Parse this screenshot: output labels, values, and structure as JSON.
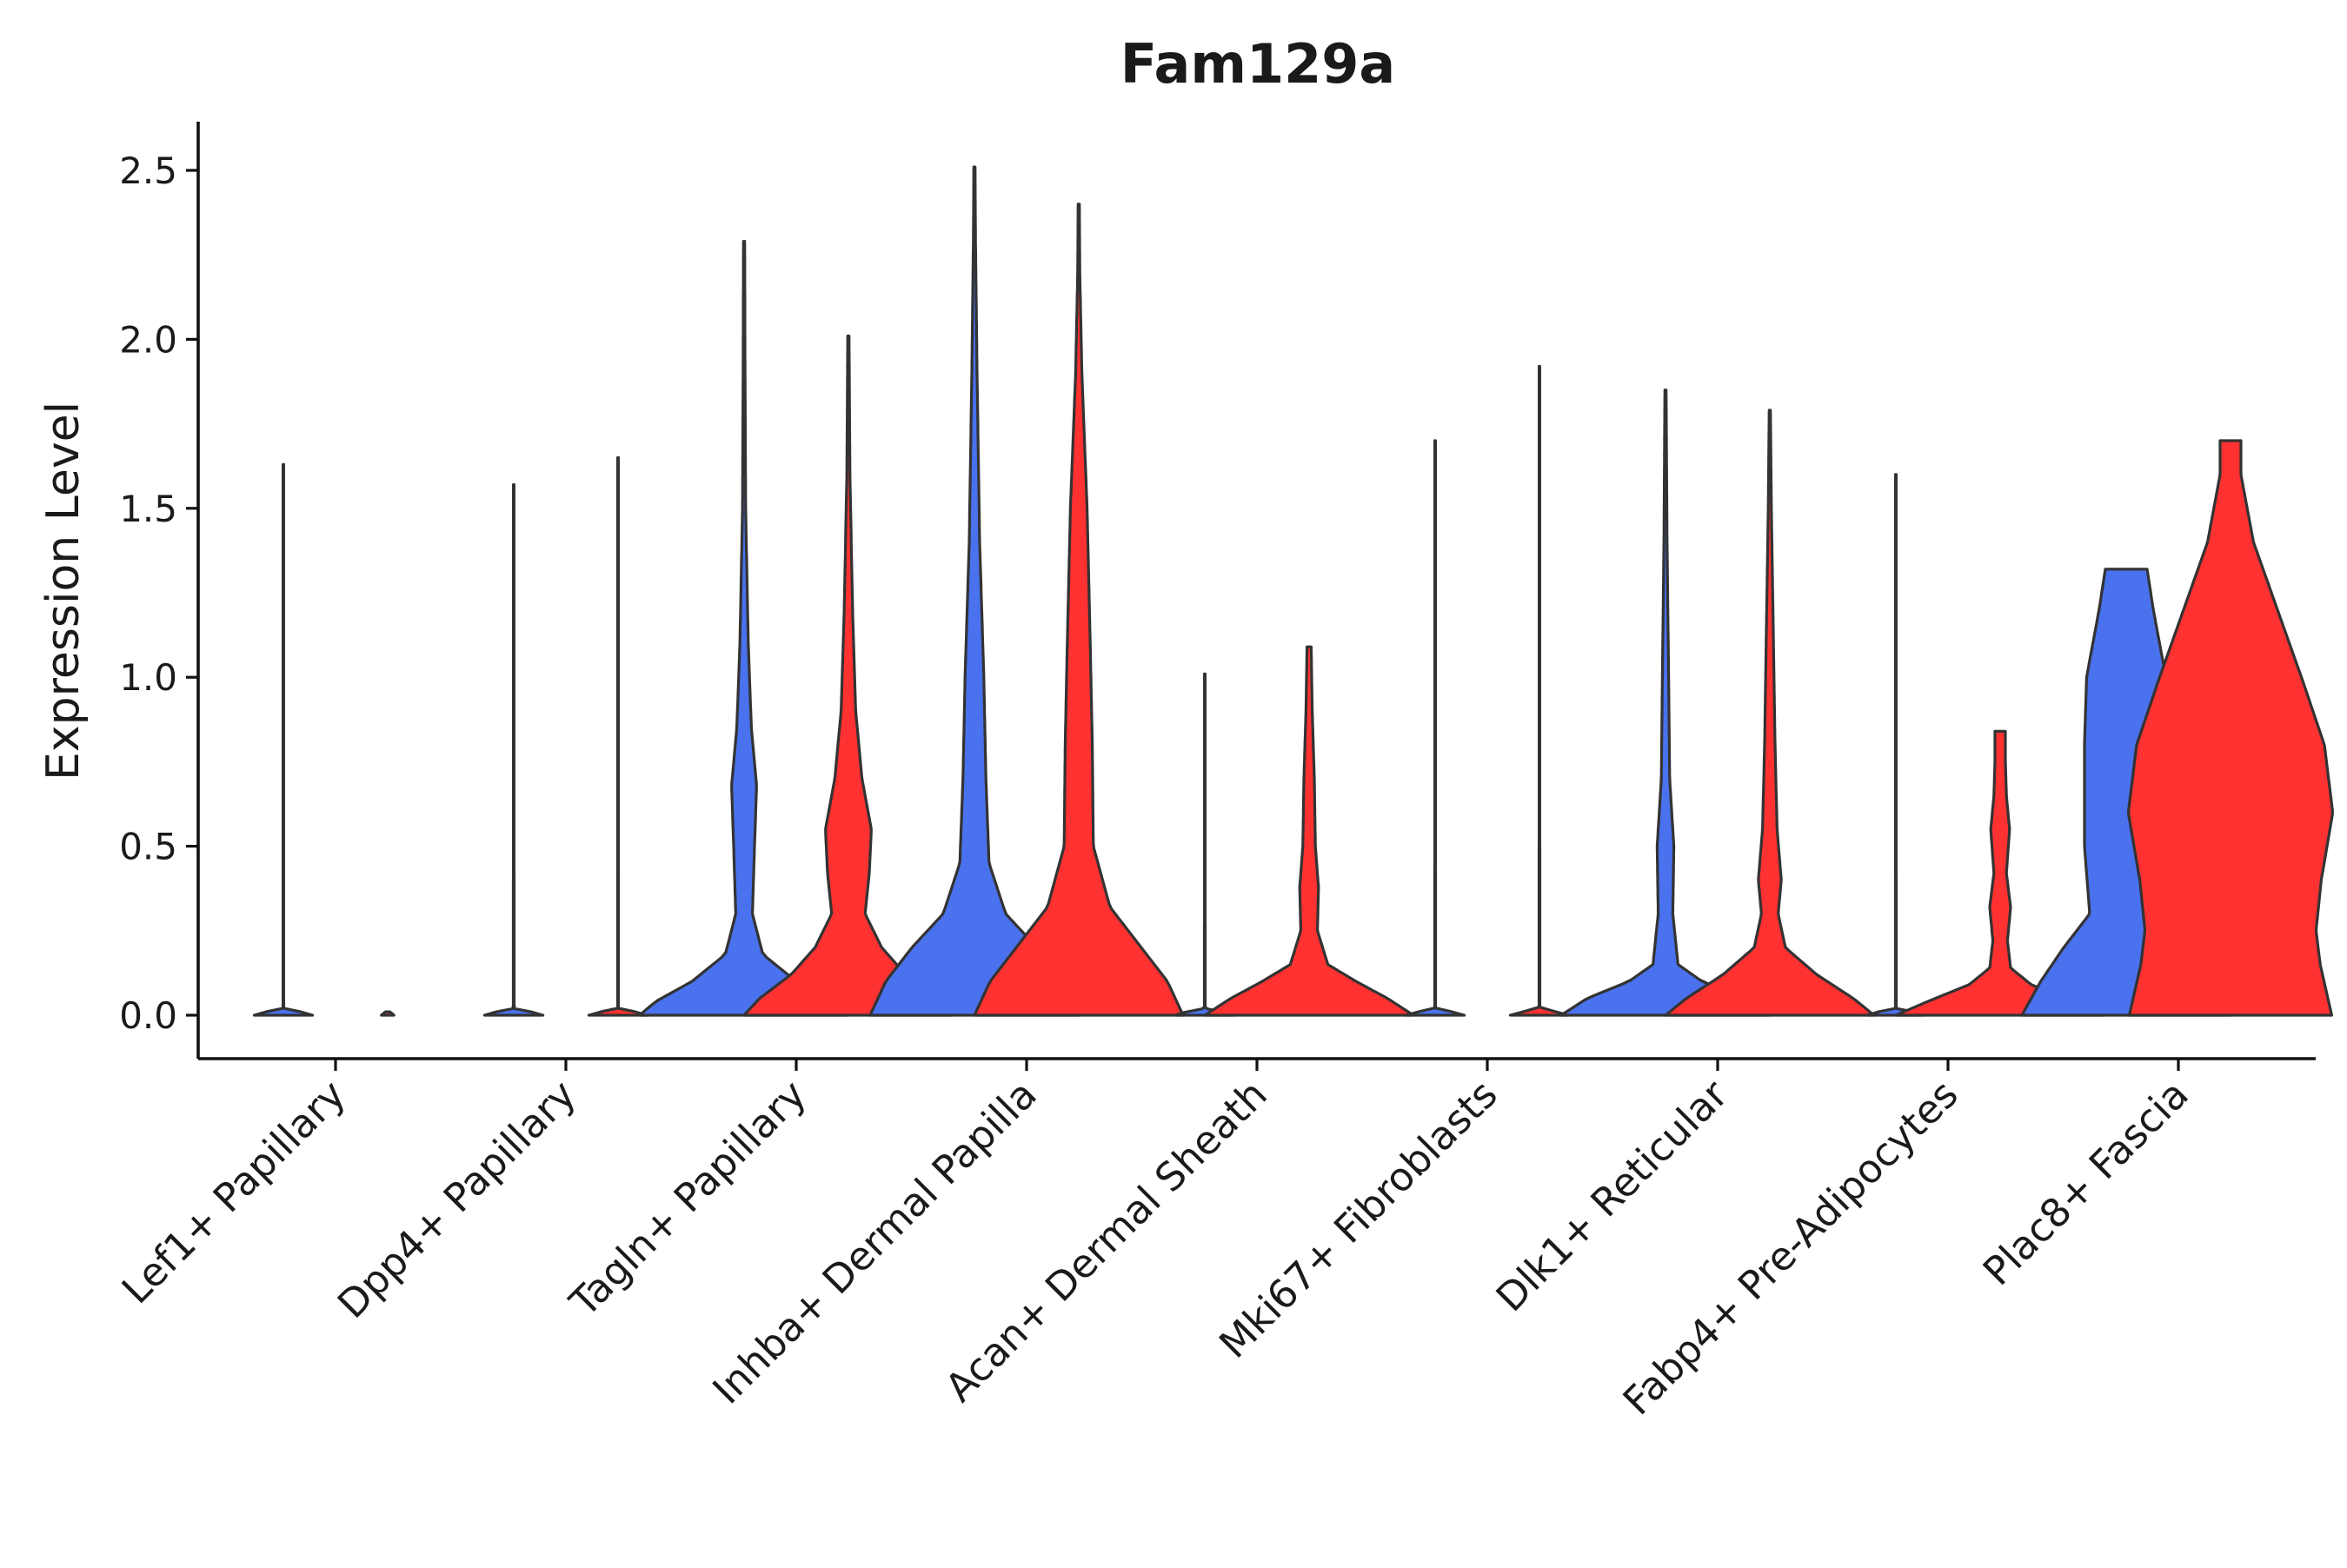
{
  "chart_data": {
    "type": "violin",
    "title": "Fam129a",
    "xlabel": "",
    "ylabel": "Expression Level",
    "ylim": [
      -0.125,
      2.65
    ],
    "yticks": [
      0.0,
      0.5,
      1.0,
      1.5,
      2.0,
      2.5
    ],
    "ytick_labels": [
      "0.0",
      "0.5",
      "1.0",
      "1.5",
      "2.0",
      "2.5"
    ],
    "grid": false,
    "legend": "none",
    "series": [
      {
        "name": "group-1",
        "color": "#4a72ee"
      },
      {
        "name": "group-2",
        "color": "#ff3131"
      }
    ],
    "categories": [
      {
        "label": "Lef1+ Papillary",
        "violins": [
          {
            "series": "group-1",
            "max": 1.63,
            "profile": [
              [
                0,
                0.28
              ],
              [
                0.003,
                0.28
              ],
              [
                0.02,
                0.004
              ],
              [
                0.1,
                0.003
              ],
              [
                1.0,
                0.003
              ],
              [
                1.63,
                0.003
              ]
            ]
          },
          {
            "series": "group-2",
            "max": 0.01,
            "profile": [
              [
                0,
                0.06
              ],
              [
                0.01,
                0.02
              ]
            ]
          }
        ]
      },
      {
        "label": "Dpp4+ Papillary",
        "violins": [
          {
            "series": "group-1",
            "max": 1.57,
            "profile": [
              [
                0,
                0.28
              ],
              [
                0.003,
                0.28
              ],
              [
                0.02,
                0.004
              ],
              [
                1.57,
                0.003
              ]
            ]
          },
          {
            "series": "group-2",
            "max": 1.65,
            "profile": [
              [
                0,
                0.28
              ],
              [
                0.003,
                0.28
              ],
              [
                0.02,
                0.004
              ],
              [
                1.65,
                0.003
              ]
            ]
          }
        ]
      },
      {
        "label": "Tagln+ Papillary",
        "violins": [
          {
            "series": "group-1",
            "max": 2.29,
            "profile": [
              [
                0,
                1.0
              ],
              [
                0.04,
                0.85
              ],
              [
                0.1,
                0.5
              ],
              [
                0.18,
                0.18
              ],
              [
                0.3,
                0.08
              ],
              [
                0.5,
                0.1
              ],
              [
                0.68,
                0.12
              ],
              [
                0.85,
                0.07
              ],
              [
                1.1,
                0.04
              ],
              [
                1.5,
                0.015
              ],
              [
                2.0,
                0.008
              ],
              [
                2.29,
                0.006
              ]
            ]
          },
          {
            "series": "group-2",
            "max": 2.01,
            "profile": [
              [
                0,
                1.0
              ],
              [
                0.05,
                0.85
              ],
              [
                0.12,
                0.55
              ],
              [
                0.2,
                0.32
              ],
              [
                0.3,
                0.16
              ],
              [
                0.42,
                0.2
              ],
              [
                0.55,
                0.22
              ],
              [
                0.7,
                0.13
              ],
              [
                0.9,
                0.07
              ],
              [
                1.2,
                0.04
              ],
              [
                1.6,
                0.015
              ],
              [
                2.01,
                0.006
              ]
            ]
          }
        ]
      },
      {
        "label": "Inhba+ Dermal Papilla",
        "violins": [
          {
            "series": "group-1",
            "max": 2.51,
            "profile": [
              [
                0,
                1.0
              ],
              [
                0.1,
                0.85
              ],
              [
                0.2,
                0.6
              ],
              [
                0.3,
                0.3
              ],
              [
                0.45,
                0.14
              ],
              [
                0.7,
                0.11
              ],
              [
                1.0,
                0.09
              ],
              [
                1.4,
                0.05
              ],
              [
                1.9,
                0.025
              ],
              [
                2.3,
                0.01
              ],
              [
                2.51,
                0.006
              ]
            ]
          },
          {
            "series": "group-2",
            "max": 2.4,
            "profile": [
              [
                0,
                1.0
              ],
              [
                0.1,
                0.85
              ],
              [
                0.2,
                0.6
              ],
              [
                0.32,
                0.3
              ],
              [
                0.5,
                0.14
              ],
              [
                0.8,
                0.13
              ],
              [
                1.1,
                0.11
              ],
              [
                1.5,
                0.08
              ],
              [
                1.9,
                0.03
              ],
              [
                2.2,
                0.01
              ],
              [
                2.4,
                0.006
              ]
            ]
          }
        ]
      },
      {
        "label": "Acan+ Dermal Sheath",
        "violins": [
          {
            "series": "group-1",
            "max": 1.01,
            "profile": [
              [
                0,
                0.28
              ],
              [
                0.003,
                0.28
              ],
              [
                0.02,
                0.004
              ],
              [
                1.01,
                0.003
              ]
            ]
          },
          {
            "series": "group-2",
            "max": 1.09,
            "profile": [
              [
                0,
                1.0
              ],
              [
                0.05,
                0.75
              ],
              [
                0.1,
                0.45
              ],
              [
                0.15,
                0.18
              ],
              [
                0.25,
                0.08
              ],
              [
                0.38,
                0.09
              ],
              [
                0.5,
                0.06
              ],
              [
                0.7,
                0.05
              ],
              [
                0.9,
                0.03
              ],
              [
                1.09,
                0.02
              ]
            ]
          }
        ]
      },
      {
        "label": "Mki67+ Fibroblasts",
        "violins": [
          {
            "series": "group-1",
            "max": 1.7,
            "profile": [
              [
                0,
                0.28
              ],
              [
                0.003,
                0.28
              ],
              [
                0.02,
                0.004
              ],
              [
                1.7,
                0.003
              ]
            ]
          },
          {
            "series": "group-2",
            "max": 1.92,
            "profile": [
              [
                0,
                0.28
              ],
              [
                0.003,
                0.28
              ],
              [
                0.02,
                0.004
              ],
              [
                1.92,
                0.003
              ]
            ]
          }
        ]
      },
      {
        "label": "Dlk1+ Reticular",
        "violins": [
          {
            "series": "group-1",
            "max": 1.85,
            "profile": [
              [
                0,
                1.0
              ],
              [
                0.05,
                0.75
              ],
              [
                0.1,
                0.35
              ],
              [
                0.15,
                0.12
              ],
              [
                0.3,
                0.07
              ],
              [
                0.5,
                0.08
              ],
              [
                0.7,
                0.04
              ],
              [
                1.0,
                0.03
              ],
              [
                1.4,
                0.015
              ],
              [
                1.85,
                0.006
              ]
            ]
          },
          {
            "series": "group-2",
            "max": 1.79,
            "profile": [
              [
                0,
                1.0
              ],
              [
                0.05,
                0.8
              ],
              [
                0.12,
                0.45
              ],
              [
                0.2,
                0.15
              ],
              [
                0.3,
                0.08
              ],
              [
                0.4,
                0.11
              ],
              [
                0.55,
                0.07
              ],
              [
                0.8,
                0.05
              ],
              [
                1.2,
                0.03
              ],
              [
                1.5,
                0.015
              ],
              [
                1.79,
                0.006
              ]
            ]
          }
        ]
      },
      {
        "label": "Fabp4+ Pre-Adipocytes",
        "violins": [
          {
            "series": "group-1",
            "max": 1.6,
            "profile": [
              [
                0,
                0.28
              ],
              [
                0.003,
                0.28
              ],
              [
                0.02,
                0.004
              ],
              [
                1.6,
                0.003
              ]
            ]
          },
          {
            "series": "group-2",
            "max": 0.84,
            "profile": [
              [
                0,
                1.0
              ],
              [
                0.04,
                0.7
              ],
              [
                0.09,
                0.3
              ],
              [
                0.14,
                0.1
              ],
              [
                0.22,
                0.07
              ],
              [
                0.32,
                0.1
              ],
              [
                0.42,
                0.06
              ],
              [
                0.55,
                0.09
              ],
              [
                0.65,
                0.06
              ],
              [
                0.75,
                0.05
              ],
              [
                0.84,
                0.05
              ]
            ]
          }
        ]
      },
      {
        "label": "Plac8+ Fascia",
        "violins": [
          {
            "series": "group-1",
            "max": 1.32,
            "profile": [
              [
                0,
                1.0
              ],
              [
                0.1,
                0.82
              ],
              [
                0.2,
                0.6
              ],
              [
                0.3,
                0.35
              ],
              [
                0.5,
                0.4
              ],
              [
                0.8,
                0.4
              ],
              [
                1.0,
                0.38
              ],
              [
                1.2,
                0.26
              ],
              [
                1.32,
                0.2
              ]
            ]
          },
          {
            "series": "group-2",
            "max": 1.7,
            "profile": [
              [
                0,
                0.97
              ],
              [
                0.15,
                0.86
              ],
              [
                0.25,
                0.82
              ],
              [
                0.4,
                0.87
              ],
              [
                0.6,
                0.98
              ],
              [
                0.8,
                0.9
              ],
              [
                1.0,
                0.68
              ],
              [
                1.2,
                0.45
              ],
              [
                1.4,
                0.22
              ],
              [
                1.6,
                0.1
              ],
              [
                1.7,
                0.1
              ]
            ]
          }
        ]
      }
    ]
  }
}
